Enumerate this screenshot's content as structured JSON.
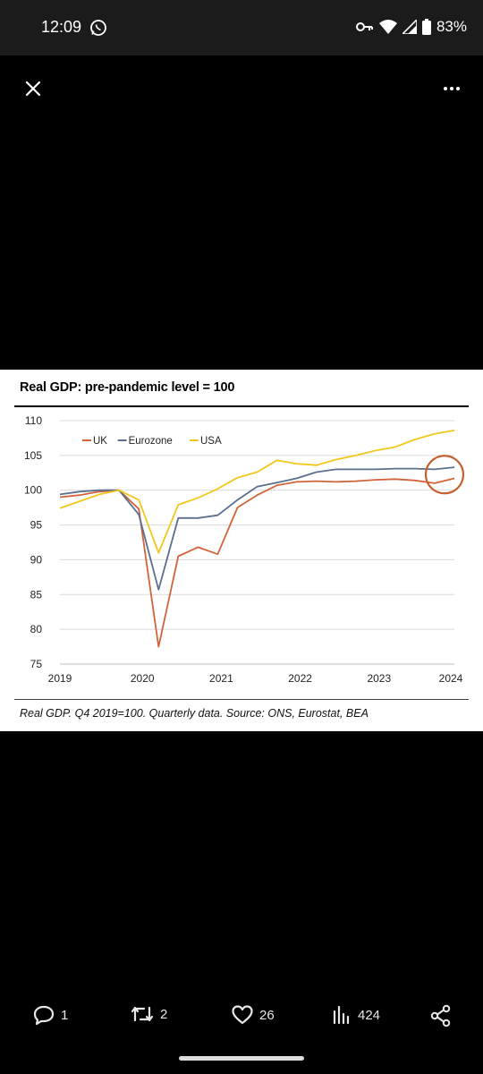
{
  "status_bar": {
    "time": "12:09",
    "battery": "83%",
    "icons": [
      "whatsapp-icon",
      "key-icon",
      "wifi-icon",
      "signal-icon",
      "battery-icon"
    ]
  },
  "top_bar": {
    "close_icon": "close-icon",
    "more_icon": "more-icon"
  },
  "figure": {
    "title": "Real GDP: pre-pandemic level = 100",
    "source": "Real GDP. Q4 2019=100. Quarterly data. Source: ONS, Eurostat, BEA"
  },
  "chart_data": {
    "type": "line",
    "x": [
      "2019Q1",
      "2019Q2",
      "2019Q3",
      "2019Q4",
      "2020Q1",
      "2020Q2",
      "2020Q3",
      "2020Q4",
      "2021Q1",
      "2021Q2",
      "2021Q3",
      "2021Q4",
      "2022Q1",
      "2022Q2",
      "2022Q3",
      "2022Q4",
      "2023Q1",
      "2023Q2",
      "2023Q3",
      "2023Q4",
      "2024Q1"
    ],
    "x_tick_labels": [
      "2019",
      "2020",
      "2021",
      "2022",
      "2023",
      "2024"
    ],
    "y_ticks": [
      75,
      80,
      85,
      90,
      95,
      100,
      105,
      110
    ],
    "ylim": [
      75,
      110
    ],
    "grid": true,
    "legend_position": "top-left",
    "series": [
      {
        "name": "UK",
        "color": "#d2643a",
        "values": [
          99.0,
          99.3,
          99.8,
          100.0,
          97.3,
          77.5,
          90.5,
          91.8,
          90.8,
          97.5,
          99.3,
          100.7,
          101.2,
          101.3,
          101.2,
          101.3,
          101.5,
          101.6,
          101.4,
          101.0,
          101.7
        ]
      },
      {
        "name": "Eurozone",
        "color": "#5b6f8e",
        "values": [
          99.4,
          99.8,
          100.0,
          100.0,
          96.5,
          85.7,
          96.0,
          96.0,
          96.4,
          98.6,
          100.5,
          101.1,
          101.7,
          102.6,
          103.0,
          103.0,
          103.0,
          103.1,
          103.1,
          103.0,
          103.3
        ]
      },
      {
        "name": "USA",
        "color": "#f2c81c",
        "values": [
          97.4,
          98.4,
          99.4,
          100.0,
          98.6,
          91.0,
          97.9,
          98.9,
          100.2,
          101.8,
          102.6,
          104.3,
          103.8,
          103.6,
          104.4,
          105.0,
          105.7,
          106.2,
          107.3,
          108.1,
          108.6
        ]
      }
    ],
    "annotation": {
      "type": "circle",
      "color": "#c6602e",
      "target": "2023Q4-2024Q1 endpoint"
    }
  },
  "actions": {
    "replies": "1",
    "reposts": "2",
    "likes": "26",
    "views": "424"
  }
}
